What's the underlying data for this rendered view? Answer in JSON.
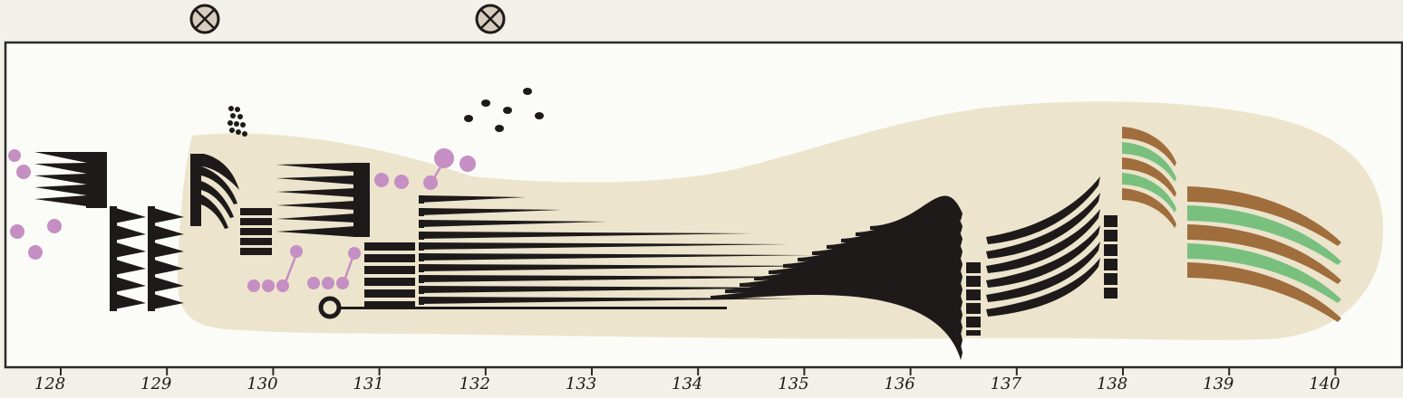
{
  "score": {
    "ruler_labels": [
      "128",
      "129",
      "130",
      "131",
      "132",
      "133",
      "134",
      "135",
      "136",
      "137",
      "138",
      "139",
      "140"
    ],
    "markers": [
      {
        "name": "crossed-circle-marker-1"
      },
      {
        "name": "crossed-circle-marker-2"
      }
    ],
    "colors": {
      "background": "#f2f0e8",
      "panel": "#fbfbf7",
      "shape_fill": "#ece4cc",
      "ink": "#1e1a1a",
      "pink": "#c58fc3",
      "brown": "#a06d3d",
      "green": "#79c07e",
      "marker_fill": "#d7cdbd"
    }
  }
}
